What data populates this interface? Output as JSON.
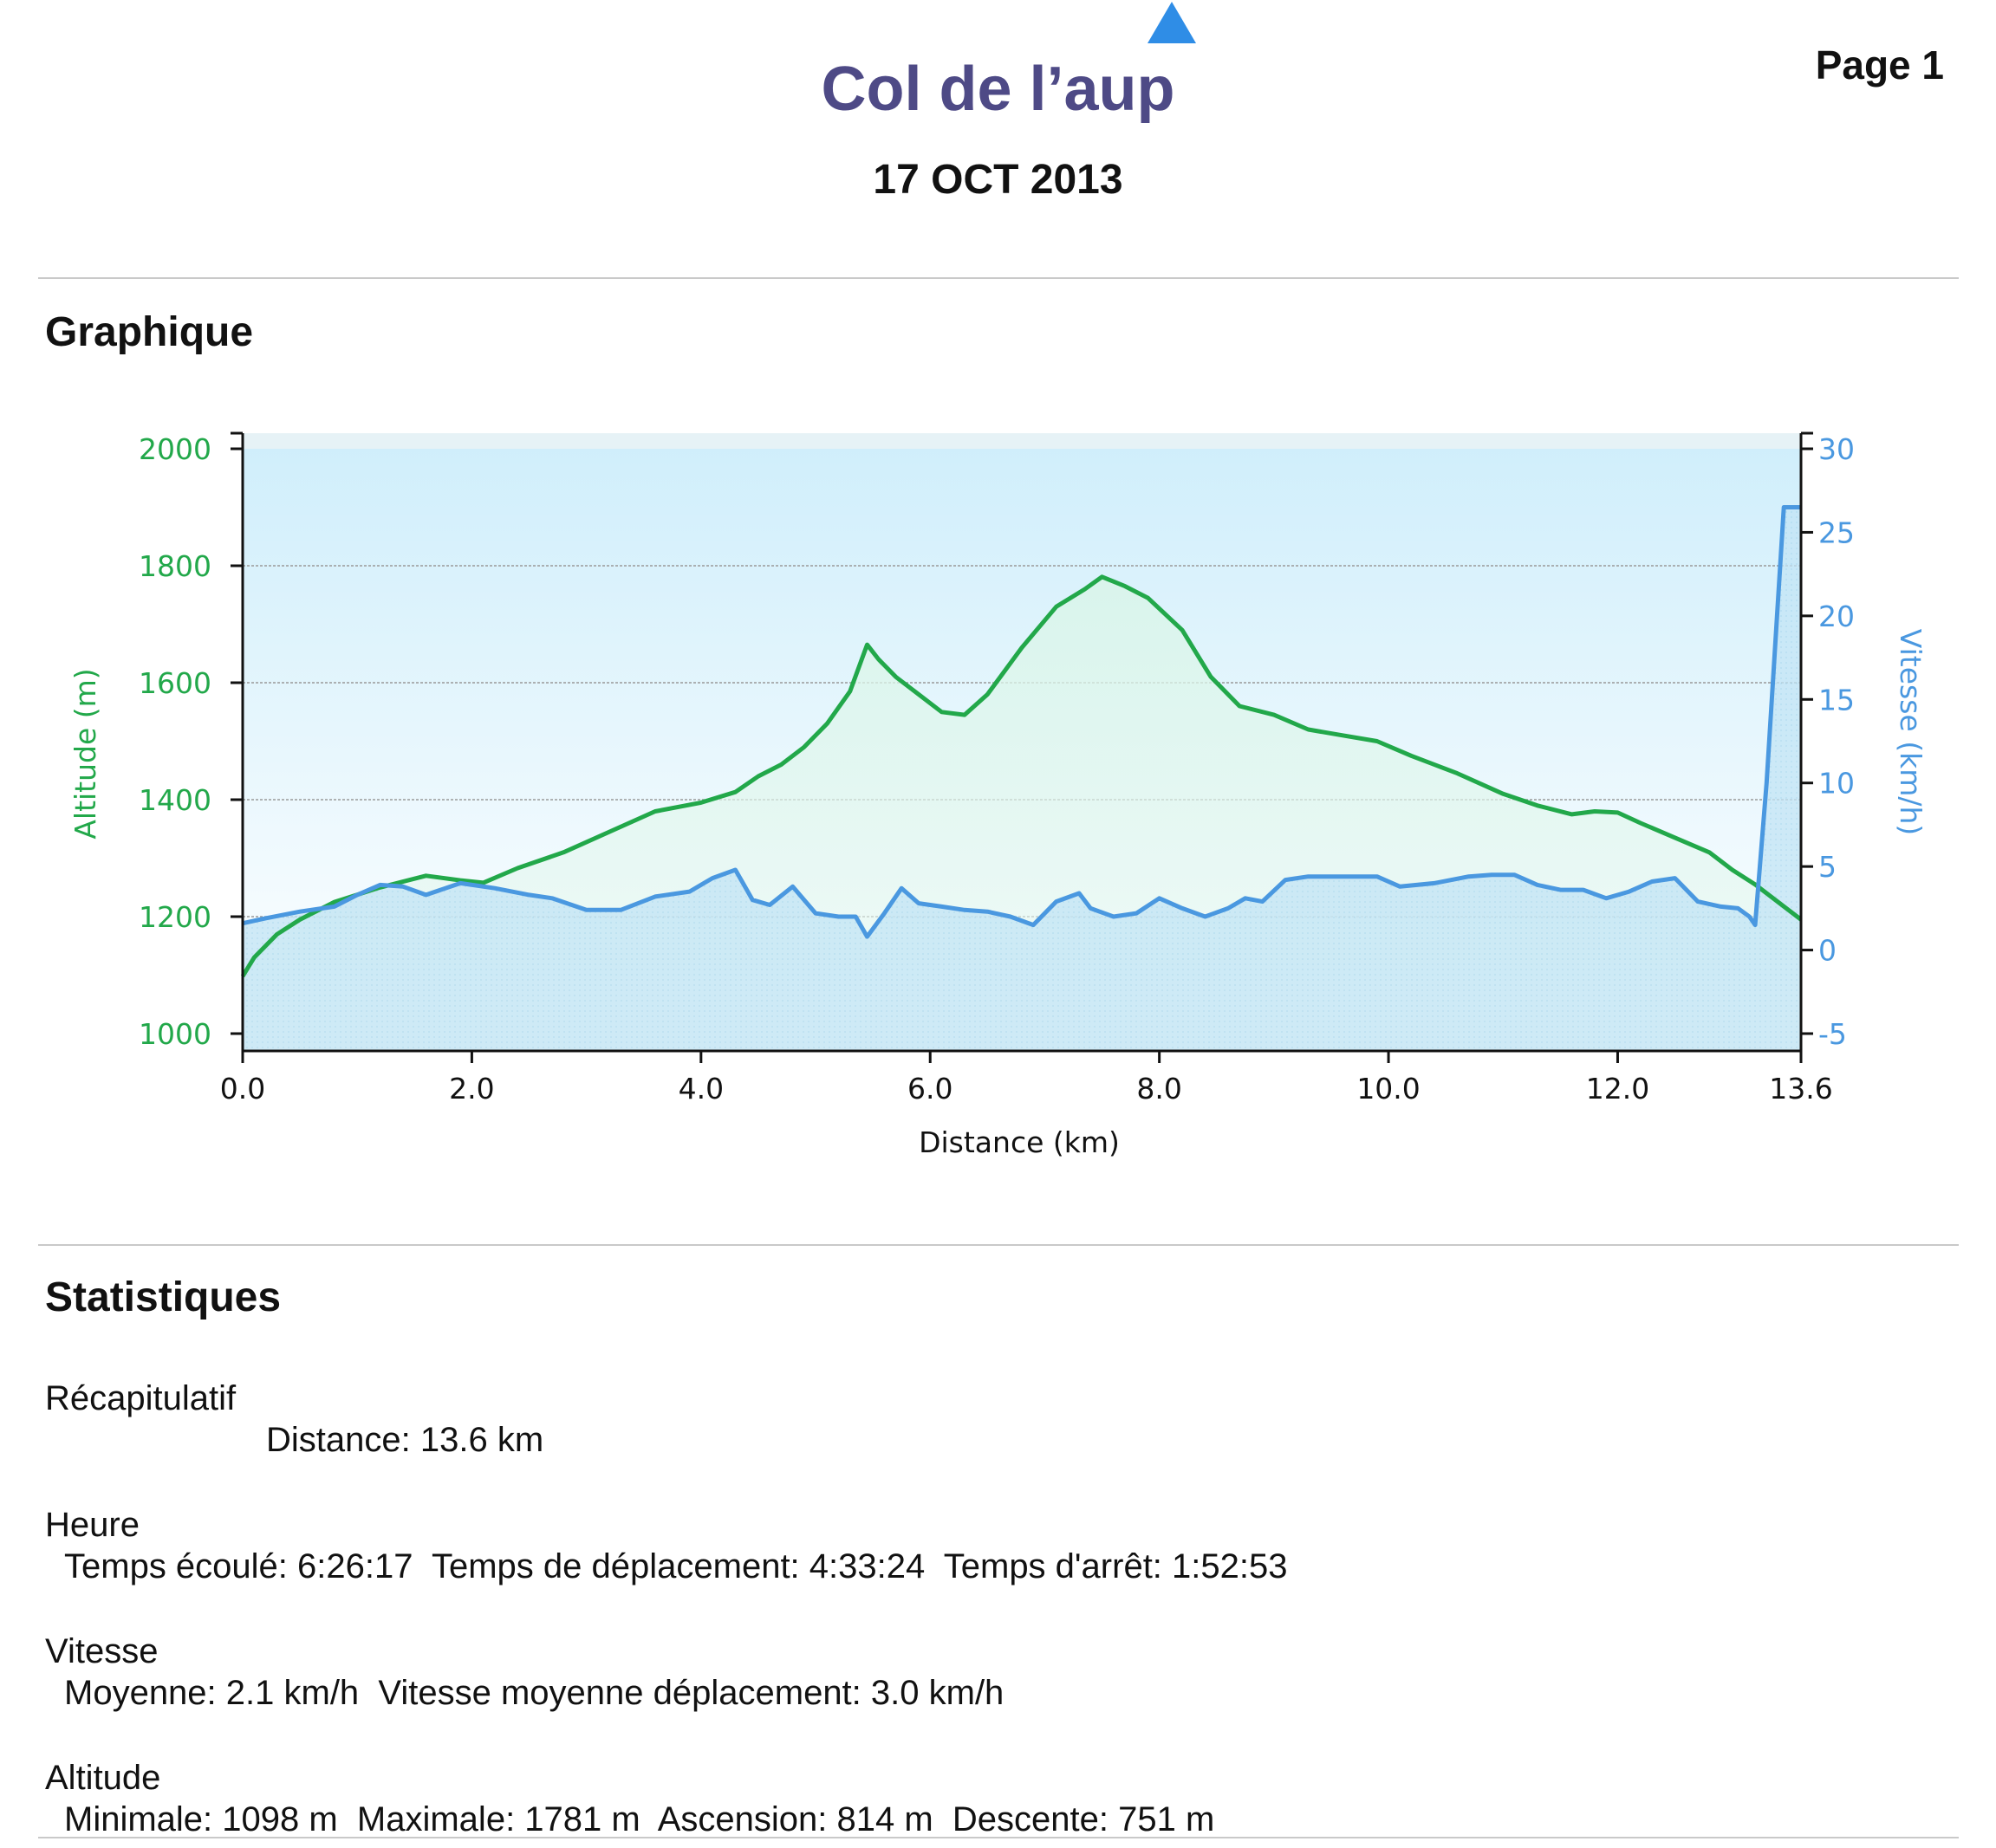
{
  "header": {
    "title": "Col de l’aup",
    "date": "17 OCT 2013",
    "page_label": "Page 1"
  },
  "sections": {
    "chart_title": "Graphique",
    "stats_title": "Statistiques"
  },
  "colors": {
    "altitude": "#22a84a",
    "speed": "#4a98e0",
    "title": "#4e4a86",
    "icon": "#2f8de6"
  },
  "icons": {
    "top": "triangle-up-icon"
  },
  "chart_data": {
    "type": "line",
    "xlabel": "Distance    (km)",
    "x_ticks": [
      "0.0",
      "2.0",
      "4.0",
      "6.0",
      "8.0",
      "10.0",
      "12.0",
      "13.6"
    ],
    "x_tick_values": [
      0,
      2,
      4,
      6,
      8,
      10,
      12,
      13.6
    ],
    "xlim": [
      0,
      13.6
    ],
    "y_left": {
      "label": "Altitude (m)",
      "ylim": [
        1000,
        2000
      ],
      "ticks": [
        "1000",
        "1200",
        "1400",
        "1600",
        "1800",
        "2000"
      ],
      "tick_values": [
        1000,
        1200,
        1400,
        1600,
        1800,
        2000
      ]
    },
    "y_right": {
      "label": "Vitesse (km/h)",
      "ylim": [
        -5,
        30
      ],
      "ticks": [
        "-5",
        "0",
        "5",
        "10",
        "15",
        "20",
        "25",
        "30"
      ],
      "tick_values": [
        -5,
        0,
        5,
        10,
        15,
        20,
        25,
        30
      ]
    },
    "grid": true,
    "series": [
      {
        "axis": "left",
        "x": [
          0,
          0.1,
          0.3,
          0.5,
          0.8,
          1.2,
          1.6,
          1.9,
          2.1,
          2.4,
          2.8,
          3.2,
          3.6,
          4.0,
          4.3,
          4.5,
          4.7,
          4.9,
          5.1,
          5.3,
          5.45,
          5.55,
          5.7,
          5.9,
          6.1,
          6.3,
          6.5,
          6.8,
          7.1,
          7.35,
          7.5,
          7.7,
          7.9,
          8.2,
          8.45,
          8.7,
          9.0,
          9.3,
          9.6,
          9.9,
          10.2,
          10.6,
          11.0,
          11.3,
          11.6,
          11.8,
          12.0,
          12.2,
          12.5,
          12.8,
          13.0,
          13.2,
          13.6
        ],
        "values": [
          1098,
          1130,
          1170,
          1195,
          1225,
          1250,
          1270,
          1262,
          1258,
          1283,
          1310,
          1345,
          1380,
          1395,
          1413,
          1440,
          1460,
          1490,
          1530,
          1585,
          1665,
          1640,
          1610,
          1580,
          1550,
          1545,
          1580,
          1660,
          1730,
          1760,
          1781,
          1765,
          1745,
          1690,
          1610,
          1560,
          1545,
          1520,
          1510,
          1500,
          1475,
          1445,
          1410,
          1390,
          1375,
          1380,
          1378,
          1360,
          1335,
          1310,
          1280,
          1255,
          1195
        ]
      },
      {
        "axis": "right",
        "x": [
          0,
          0.2,
          0.5,
          0.8,
          1.0,
          1.2,
          1.4,
          1.6,
          1.9,
          2.2,
          2.5,
          2.7,
          3.0,
          3.3,
          3.6,
          3.9,
          4.1,
          4.3,
          4.45,
          4.6,
          4.8,
          5.0,
          5.2,
          5.35,
          5.45,
          5.6,
          5.75,
          5.9,
          6.1,
          6.3,
          6.5,
          6.7,
          6.9,
          7.1,
          7.3,
          7.4,
          7.6,
          7.8,
          8.0,
          8.2,
          8.4,
          8.6,
          8.75,
          8.9,
          9.1,
          9.3,
          9.6,
          9.9,
          10.1,
          10.4,
          10.7,
          10.9,
          11.1,
          11.3,
          11.5,
          11.7,
          11.9,
          12.1,
          12.3,
          12.5,
          12.7,
          12.9,
          13.05,
          13.15,
          13.2,
          13.3,
          13.45,
          13.55,
          13.6
        ],
        "values": [
          1.6,
          1.9,
          2.3,
          2.6,
          3.3,
          3.9,
          3.8,
          3.3,
          4.0,
          3.7,
          3.3,
          3.1,
          2.4,
          2.4,
          3.2,
          3.5,
          4.3,
          4.8,
          3.0,
          2.7,
          3.8,
          2.2,
          2.0,
          2.0,
          0.8,
          2.2,
          3.7,
          2.8,
          2.6,
          2.4,
          2.3,
          2.0,
          1.5,
          2.9,
          3.4,
          2.5,
          2.0,
          2.2,
          3.1,
          2.5,
          2.0,
          2.5,
          3.1,
          2.9,
          4.2,
          4.4,
          4.4,
          4.4,
          3.8,
          4.0,
          4.4,
          4.5,
          4.5,
          3.9,
          3.6,
          3.6,
          3.1,
          3.5,
          4.1,
          4.3,
          2.9,
          2.6,
          2.5,
          2.0,
          1.5,
          10.0,
          26.5,
          26.5,
          26.5
        ]
      }
    ]
  },
  "stats": [
    {
      "label": "Récapitulatif",
      "line": "Distance: 13.6 km"
    },
    {
      "label": "Heure",
      "line": "Temps écoulé: 6:26:17  Temps de déplacement: 4:33:24  Temps d'arrêt: 1:52:53"
    },
    {
      "label": "Vitesse",
      "line": "Moyenne: 2.1 km/h  Vitesse moyenne déplacement: 3.0 km/h"
    },
    {
      "label": "Altitude",
      "line": "Minimale: 1098 m  Maximale: 1781 m  Ascension: 814 m  Descente: 751 m"
    }
  ]
}
